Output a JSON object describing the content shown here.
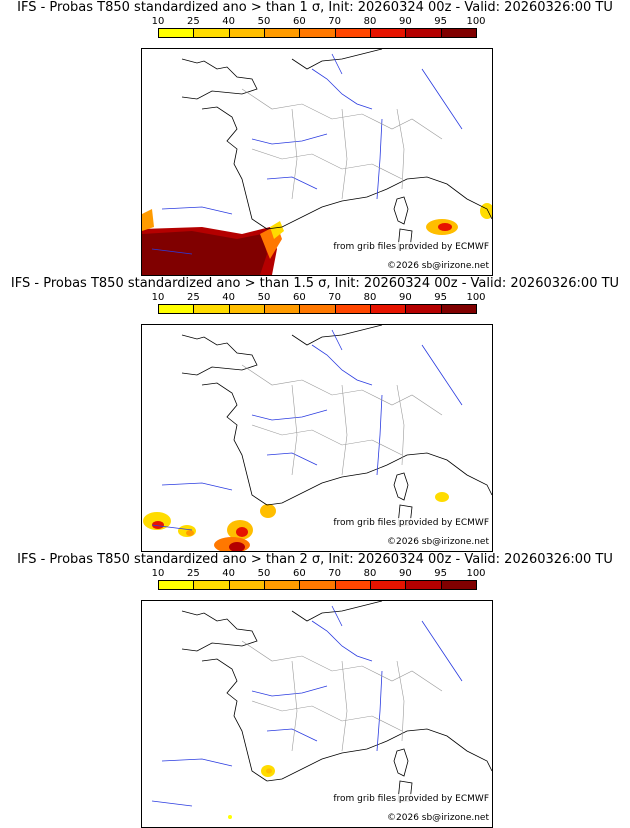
{
  "legend": {
    "ticks": [
      "10",
      "25",
      "40",
      "50",
      "60",
      "70",
      "80",
      "90",
      "95",
      "100"
    ],
    "colors": [
      "#ffff00",
      "#ffdc00",
      "#ffbe00",
      "#ff9b00",
      "#ff7800",
      "#ff4600",
      "#e61400",
      "#b40000",
      "#800000"
    ]
  },
  "map": {
    "credit_source": "from grib files provided by ECMWF",
    "credit_copyright": "©2026 sb@irizone.net"
  },
  "panels": [
    {
      "title": "IFS - Probas T850  standardized ano > than 1 σ, Init: 20260324 00z - Valid: 20260326:00 TU"
    },
    {
      "title": "IFS - Probas T850  standardized ano > than 1.5 σ, Init: 20260324 00z - Valid: 20260326:00 TU"
    },
    {
      "title": "IFS - Probas T850  standardized ano > than 2 σ, Init: 20260324 00z - Valid: 20260326:00 TU"
    }
  ]
}
